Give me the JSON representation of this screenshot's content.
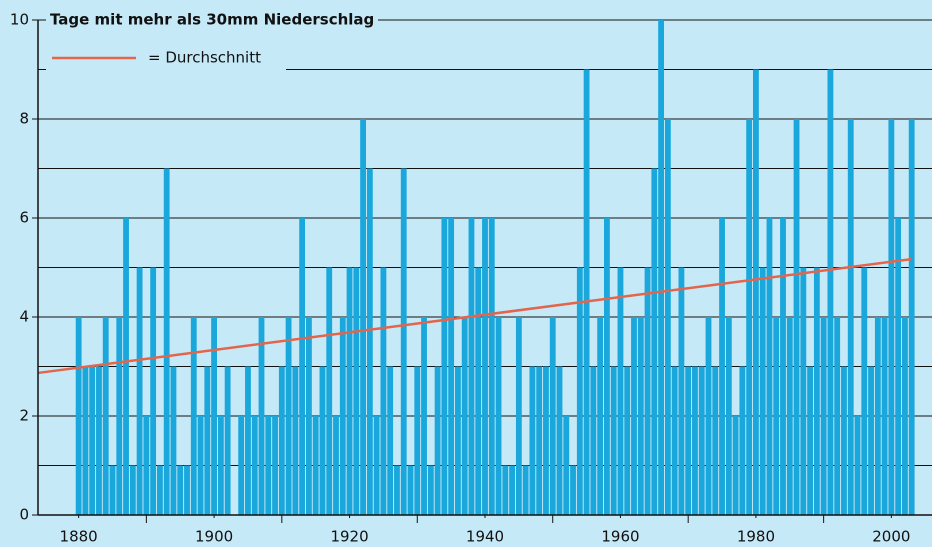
{
  "chart_data": {
    "type": "bar",
    "title": "Tage mit mehr als 30mm Niederschlag",
    "color": "#1aa7db",
    "x": [
      1880,
      1881,
      1882,
      1883,
      1884,
      1885,
      1886,
      1887,
      1888,
      1889,
      1890,
      1891,
      1892,
      1893,
      1894,
      1895,
      1896,
      1897,
      1898,
      1899,
      1900,
      1901,
      1902,
      1903,
      1904,
      1905,
      1906,
      1907,
      1908,
      1909,
      1910,
      1911,
      1912,
      1913,
      1914,
      1915,
      1916,
      1917,
      1918,
      1919,
      1920,
      1921,
      1922,
      1923,
      1924,
      1925,
      1926,
      1927,
      1928,
      1929,
      1930,
      1931,
      1932,
      1933,
      1934,
      1935,
      1936,
      1937,
      1938,
      1939,
      1940,
      1941,
      1942,
      1943,
      1944,
      1945,
      1946,
      1947,
      1948,
      1949,
      1950,
      1951,
      1952,
      1953,
      1954,
      1955,
      1956,
      1957,
      1958,
      1959,
      1960,
      1961,
      1962,
      1963,
      1964,
      1965,
      1966,
      1967,
      1968,
      1969,
      1970,
      1971,
      1972,
      1973,
      1974,
      1975,
      1976,
      1977,
      1978,
      1979,
      1980,
      1981,
      1982,
      1983,
      1984,
      1985,
      1986,
      1987,
      1988,
      1989,
      1990,
      1991,
      1992,
      1993,
      1994,
      1995,
      1996,
      1997,
      1998,
      1999,
      2000,
      2001,
      2002,
      2003
    ],
    "values": [
      4,
      3,
      3,
      3,
      4,
      1,
      4,
      6,
      1,
      5,
      2,
      5,
      1,
      7,
      3,
      1,
      1,
      4,
      2,
      3,
      4,
      2,
      3,
      0,
      2,
      3,
      2,
      4,
      2,
      2,
      3,
      4,
      3,
      6,
      4,
      2,
      3,
      5,
      2,
      4,
      5,
      5,
      8,
      7,
      2,
      5,
      3,
      1,
      7,
      1,
      3,
      4,
      1,
      3,
      6,
      6,
      3,
      4,
      6,
      5,
      6,
      6,
      4,
      1,
      1,
      4,
      1,
      3,
      3,
      3,
      4,
      3,
      2,
      1,
      5,
      9,
      3,
      4,
      6,
      3,
      5,
      3,
      4,
      4,
      5,
      7,
      10,
      8,
      3,
      5,
      3,
      3,
      3,
      4,
      3,
      6,
      4,
      2,
      3,
      8,
      9,
      5,
      6,
      4,
      6,
      4,
      8,
      5,
      3,
      5,
      4,
      9,
      4,
      3,
      8,
      2,
      5,
      3,
      4,
      4,
      8,
      6,
      4,
      8
    ],
    "trend": {
      "name": "= Durchschnitt",
      "color": "#e2654c",
      "x": [
        1874,
        2003
      ],
      "values": [
        2.87,
        5.17
      ]
    },
    "xlim": [
      1874,
      2006
    ],
    "xticks": [
      1880,
      1900,
      1920,
      1940,
      1960,
      1980,
      2000
    ],
    "xminor": [
      1890,
      1910,
      1930,
      1950,
      1970,
      1990
    ],
    "ylim": [
      0,
      10
    ],
    "yticks": [
      0,
      2,
      4,
      6,
      8,
      10
    ],
    "yminor": [
      1,
      3,
      5,
      7,
      9
    ],
    "grid": true
  }
}
